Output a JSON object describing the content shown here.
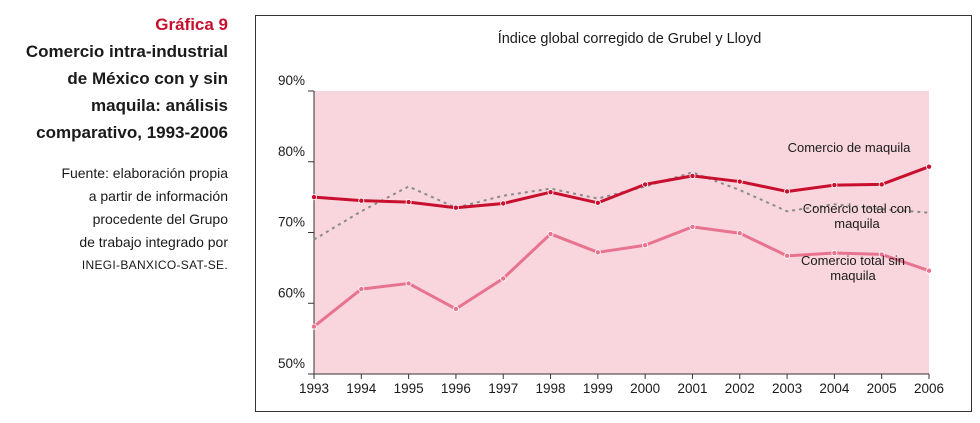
{
  "sidebar": {
    "figure_label": "Gráfica 9",
    "title_lines": [
      "Comercio intra-industrial",
      "de México con y sin",
      "maquila: análisis",
      "comparativo, 1993-2006"
    ],
    "source_lines": [
      "Fuente: elaboración propia",
      "a partir de información",
      "procedente del Grupo",
      "de trabajo integrado por"
    ],
    "source_org": "INEGI-BANXICO-SAT-SE."
  },
  "chart_data": {
    "type": "line",
    "title": "Índice global corregido de Grubel y Lloyd",
    "x": [
      1993,
      1994,
      1995,
      1996,
      1997,
      1998,
      1999,
      2000,
      2001,
      2002,
      2003,
      2004,
      2005,
      2006
    ],
    "x_tick_labels": [
      "1993",
      "1994",
      "1995",
      "1996",
      "1997",
      "1998",
      "1999",
      "2000",
      "2001",
      "2002",
      "2003",
      "2004",
      "2005",
      "2006"
    ],
    "ylim": [
      50,
      90
    ],
    "y_ticks": [
      50,
      60,
      70,
      80,
      90
    ],
    "y_tick_labels": [
      "50%",
      "60%",
      "70%",
      "80%",
      "90%"
    ],
    "background_color": "#f9d6de",
    "series": [
      {
        "name": "Comercio de maquila",
        "label_lines": [
          "Comercio de maquila"
        ],
        "style": "solid",
        "color": "#c8102e",
        "values": [
          75.0,
          74.5,
          74.3,
          73.5,
          74.1,
          75.7,
          74.2,
          76.8,
          78.0,
          77.2,
          75.8,
          76.7,
          76.8,
          79.3
        ]
      },
      {
        "name": "Comercio total con maquila",
        "label_lines": [
          "Comercio total con",
          "maquila"
        ],
        "style": "dotted",
        "color": "#8a8a8a",
        "values": [
          69.0,
          73.0,
          76.5,
          73.5,
          75.2,
          76.2,
          74.8,
          76.5,
          78.5,
          76.0,
          73.0,
          74.0,
          73.3,
          72.8
        ]
      },
      {
        "name": "Comercio total sin maquila",
        "label_lines": [
          "Comercio total sin",
          "maquila"
        ],
        "style": "solid",
        "color": "#e8738f",
        "values": [
          56.7,
          62.0,
          62.8,
          59.2,
          63.5,
          69.8,
          67.2,
          68.2,
          70.8,
          69.9,
          66.7,
          67.1,
          66.9,
          64.6
        ]
      }
    ]
  }
}
